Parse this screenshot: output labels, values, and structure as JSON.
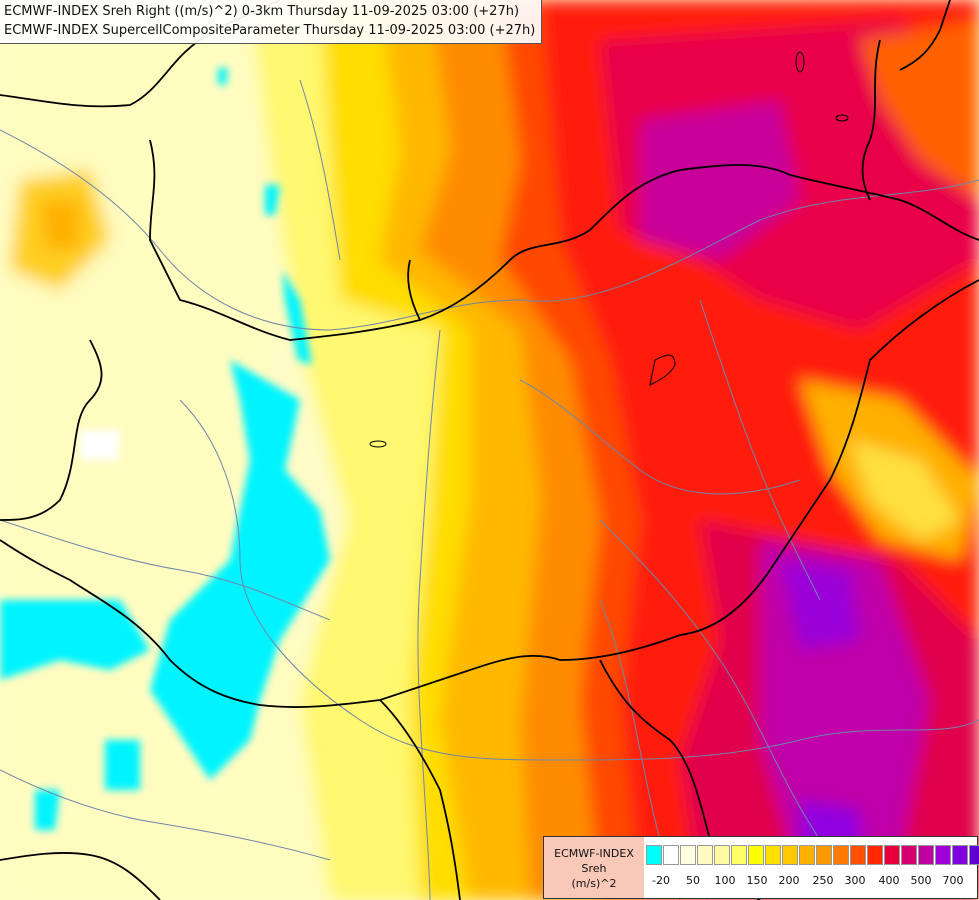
{
  "title": {
    "line1": "ECMWF-INDEX Sreh Right ((m/s)^2) 0-3km Thursday 11-09-2025 03:00 (+27h)",
    "line2": "ECMWF-INDEX SupercellCompositeParameter Thursday 11-09-2025 03:00 (+27h)"
  },
  "legend": {
    "model": "ECMWF-INDEX",
    "param": "Sreh",
    "unit": "(m/s)^2",
    "colors": [
      "#00ffff",
      "#ffffff",
      "#fffde0",
      "#fffbc0",
      "#fff8a0",
      "#ffff66",
      "#ffff00",
      "#ffe000",
      "#ffc800",
      "#ffb000",
      "#ff9800",
      "#ff7800",
      "#ff5000",
      "#ff2800",
      "#e8003c",
      "#d4006e",
      "#c000a0",
      "#a000d8",
      "#8000e0",
      "#6000d0",
      "#3000b0",
      "#000090"
    ],
    "ticks": [
      "-20",
      "50",
      "100",
      "150",
      "200",
      "250",
      "300",
      "400",
      "500",
      "700"
    ]
  },
  "map_layers": {
    "background": "#fefbc6",
    "country_borders": "#000000",
    "rivers": "#6f86a8",
    "lakes_outline": "#000000"
  }
}
